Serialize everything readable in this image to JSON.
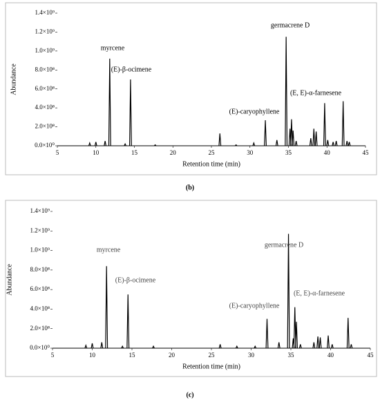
{
  "chart_data": [
    {
      "type": "line",
      "label": "(b)",
      "xlabel": "Retention time (min)",
      "ylabel": "Abundance",
      "color": "#000000",
      "xlim": [
        5,
        45
      ],
      "xticks": [
        5,
        10,
        15,
        20,
        25,
        30,
        35,
        40,
        45
      ],
      "ylim": [
        0,
        1400000000
      ],
      "yticks": [
        {
          "value": 0,
          "label": "0.0×10⁰"
        },
        {
          "value": 200000000,
          "label": "2.0×10⁸"
        },
        {
          "value": 400000000,
          "label": "4.0×10⁸"
        },
        {
          "value": 600000000,
          "label": "6.0×10⁸"
        },
        {
          "value": 800000000,
          "label": "8.0×10⁸"
        },
        {
          "value": 1000000000,
          "label": "1.0×10⁹"
        },
        {
          "value": 1200000000,
          "label": "1.2×10⁹"
        },
        {
          "value": 1400000000,
          "label": "1.4×10⁹"
        }
      ],
      "x": [
        9.2,
        10.0,
        11.2,
        11.8,
        13.8,
        14.5,
        17.7,
        26.1,
        28.2,
        30.5,
        32.0,
        33.5,
        34.7,
        35.2,
        35.4,
        35.6,
        36.0,
        37.9,
        38.3,
        38.6,
        39.7,
        40.1,
        40.8,
        41.2,
        42.1,
        42.6,
        42.9
      ],
      "values": [
        30000000,
        40000000,
        50000000,
        920000000,
        20000000,
        700000000,
        10000000,
        130000000,
        10000000,
        30000000,
        270000000,
        60000000,
        1150000000,
        180000000,
        280000000,
        160000000,
        50000000,
        80000000,
        180000000,
        150000000,
        450000000,
        60000000,
        40000000,
        50000000,
        470000000,
        50000000,
        40000000
      ],
      "annotations": [
        "myrcene",
        "(E)-β-ocimene",
        "(E)-caryophyllene",
        "germacrene D",
        "(E, E)-α-farnesene"
      ]
    },
    {
      "type": "line",
      "label": "(c)",
      "xlabel": "Retention time (min)",
      "ylabel": "Abundance",
      "color": "#000000",
      "xlim": [
        5,
        45
      ],
      "xticks": [
        5,
        10,
        15,
        20,
        25,
        30,
        35,
        40,
        45
      ],
      "ylim": [
        0,
        1400000000
      ],
      "yticks": [
        {
          "value": 0,
          "label": "0.0×10⁰"
        },
        {
          "value": 200000000,
          "label": "2.0×10⁸"
        },
        {
          "value": 400000000,
          "label": "4.0×10⁸"
        },
        {
          "value": 600000000,
          "label": "6.0×10⁸"
        },
        {
          "value": 800000000,
          "label": "8.0×10⁸"
        },
        {
          "value": 1000000000,
          "label": "1.0×10⁹"
        },
        {
          "value": 1200000000,
          "label": "1.2×10⁹"
        },
        {
          "value": 1400000000,
          "label": "1.4×10⁹"
        }
      ],
      "x": [
        9.2,
        10.0,
        11.2,
        11.8,
        13.8,
        14.5,
        17.7,
        26.1,
        28.2,
        30.5,
        32.0,
        33.5,
        34.7,
        35.3,
        35.5,
        35.7,
        36.2,
        37.9,
        38.4,
        38.7,
        39.7,
        40.2,
        42.2,
        42.6
      ],
      "values": [
        30000000,
        50000000,
        60000000,
        840000000,
        20000000,
        550000000,
        20000000,
        40000000,
        20000000,
        20000000,
        300000000,
        60000000,
        1170000000,
        100000000,
        420000000,
        270000000,
        40000000,
        60000000,
        120000000,
        110000000,
        130000000,
        40000000,
        310000000,
        40000000
      ],
      "annotations": [
        "myrcene",
        "(E)-β-ocimene",
        "(E)-caryophyllene",
        "germacrene D",
        "(E, E)-α-farnesene"
      ]
    }
  ]
}
